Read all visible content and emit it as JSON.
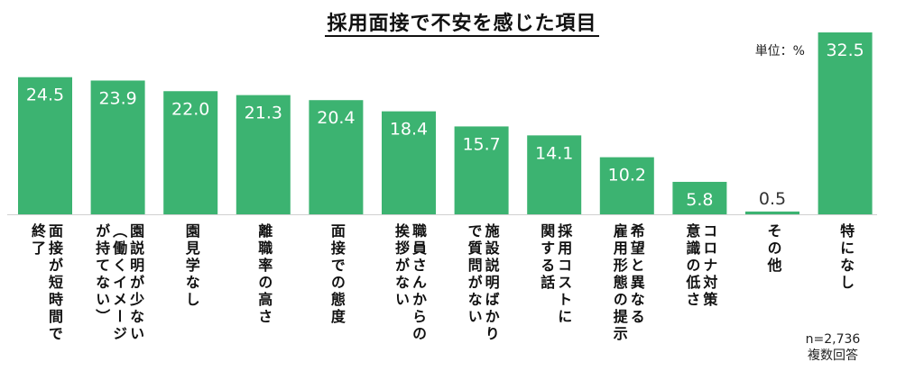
{
  "chart_data": {
    "type": "bar",
    "title": "採用面接で不安を感じた項目",
    "unit_label": "単位：%",
    "notes": [
      "n=2,736",
      "複数回答"
    ],
    "categories": [
      "面接が短時間で\n終了",
      "園説明が少ない\n（働くイメージ\nが持てない）",
      "園見学なし",
      "離職率の高さ",
      "面接での態度",
      "職員さんからの\n挨拶がない",
      "施設説明ばかり\nで質問がない",
      "採用コストに\n関する話",
      "希望と異なる\n雇用形態の提示",
      "コロナ対策\n意識の低さ",
      "その他",
      "特になし"
    ],
    "values": [
      24.5,
      23.9,
      22.0,
      21.3,
      20.4,
      18.4,
      15.7,
      14.1,
      10.2,
      5.8,
      0.5,
      32.5
    ],
    "value_labels": [
      "24.5",
      "23.9",
      "22.0",
      "21.3",
      "20.4",
      "18.4",
      "15.7",
      "14.1",
      "10.2",
      "5.8",
      "0.5",
      "32.5"
    ],
    "ylim": [
      0,
      32.5
    ],
    "bar_color": "#3cb371",
    "label_color_inside": "#ffffff",
    "label_color_outside": "#333333",
    "grid": false
  }
}
